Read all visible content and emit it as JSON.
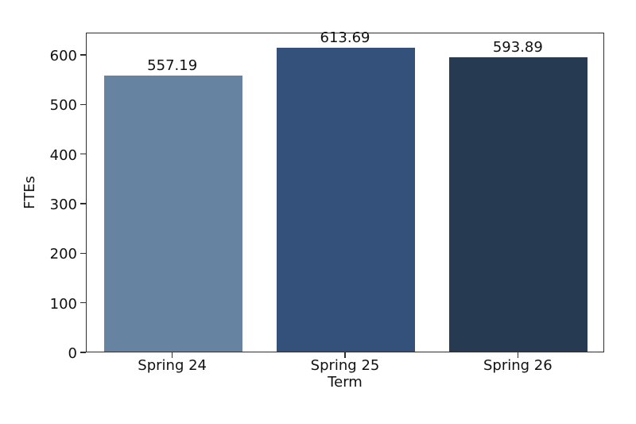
{
  "chart_data": {
    "type": "bar",
    "title": "",
    "categories": [
      "Spring 24",
      "Spring 25",
      "Spring 26"
    ],
    "values": [
      557.19,
      613.69,
      593.89
    ],
    "value_labels": [
      "557.19",
      "613.69",
      "593.89"
    ],
    "bar_colors": [
      "#6684a2",
      "#34517b",
      "#263a52"
    ],
    "xlabel": "Term",
    "ylabel": "FTEs",
    "ylim": [
      0,
      645
    ],
    "yticks": [
      0,
      100,
      200,
      300,
      400,
      500,
      600
    ],
    "grid": false,
    "legend": null,
    "bar_width_fraction": 0.8
  },
  "colors": {
    "background": "#ffffff",
    "spine": "#2e2e2e",
    "text": "#111111"
  }
}
